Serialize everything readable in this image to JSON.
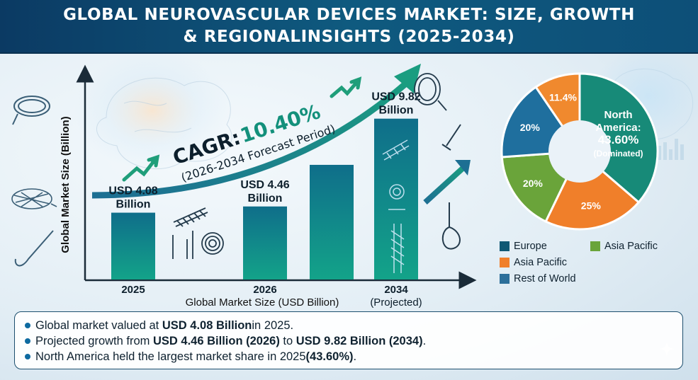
{
  "title": {
    "line1": "GLOBAL NEUROVASCULAR DEVICES MARKET: SIZE, GROWTH",
    "line2": "& REGIONALINSIGHTS (2025-2034)"
  },
  "colors": {
    "title_bg": "#0b3a63",
    "bar_top": "#0f6e8a",
    "bar_bottom": "#13a389",
    "arrow": "#17937f",
    "north_america": "#178a78",
    "europe": "#0f5874",
    "asia_pacific_green": "#6aa43a",
    "asia_pacific_orange": "#f07f2a",
    "rest_of_world": "#1f6f9e"
  },
  "chart_data": [
    {
      "type": "bar",
      "categories": [
        "2025",
        "2026",
        "",
        "2034\n(Projected)"
      ],
      "series": [
        {
          "values": [
            4.08,
            4.46,
            7.0,
            9.82
          ]
        }
      ],
      "data_labels": [
        "USD 4.08\nBillion",
        "USD 4.46\nBillion",
        "",
        "USD 9.82\nBillion"
      ],
      "tick_labels": [
        {
          "main": "2025",
          "sub": ""
        },
        {
          "main": "2026",
          "sub": ""
        },
        {
          "main": "",
          "sub": ""
        },
        {
          "main": "2034",
          "sub": "(Projected)"
        }
      ],
      "xlabel": "Global Market Size (USD Billion)",
      "ylabel": "Global Market Size (Billion)",
      "annotation": {
        "cagr_label": "CAGR:",
        "cagr_value": "10.40%",
        "period": "(2026-2034 Forecast Period)"
      },
      "grid": false
    },
    {
      "type": "pie",
      "style": "donut",
      "slices": [
        {
          "label": "North America: 43.60% (Dominated)",
          "display_lines": [
            "North",
            "America:",
            "43.60%",
            "(Dominated)"
          ],
          "value": 43.6,
          "color": "#178a78"
        },
        {
          "label": "25%",
          "value": 25,
          "color": "#f07f2a"
        },
        {
          "label": "20%",
          "value": 20,
          "color": "#6aa43a"
        },
        {
          "label": "20%",
          "value": 20,
          "color": "#1f6f9e"
        },
        {
          "label": "11.4%",
          "value": 11.4,
          "color": "#f0892e"
        }
      ],
      "legend": [
        {
          "name": "Europe",
          "color": "#0f5874"
        },
        {
          "name": "Asia Pacific",
          "color": "#6aa43a"
        },
        {
          "name": "Asia Pacific",
          "color": "#f07f2a"
        },
        {
          "name": "Rest of World",
          "color": "#2c6f9a"
        }
      ]
    }
  ],
  "footer": {
    "bullets": [
      {
        "pre": "Global market valued at ",
        "bold1": "USD 4.08 Billion",
        "mid": " in 2025.",
        "bold2": "",
        "post": ""
      },
      {
        "pre": "Projected growth from ",
        "bold1": "USD 4.46 Billion (2026)",
        "mid": " to ",
        "bold2": "USD 9.82 Billion (2034)",
        "post": "."
      },
      {
        "pre": "North America held the largest market share in 2025 ",
        "bold1": "(43.60%)",
        "mid": ".",
        "bold2": "",
        "post": ""
      }
    ]
  }
}
